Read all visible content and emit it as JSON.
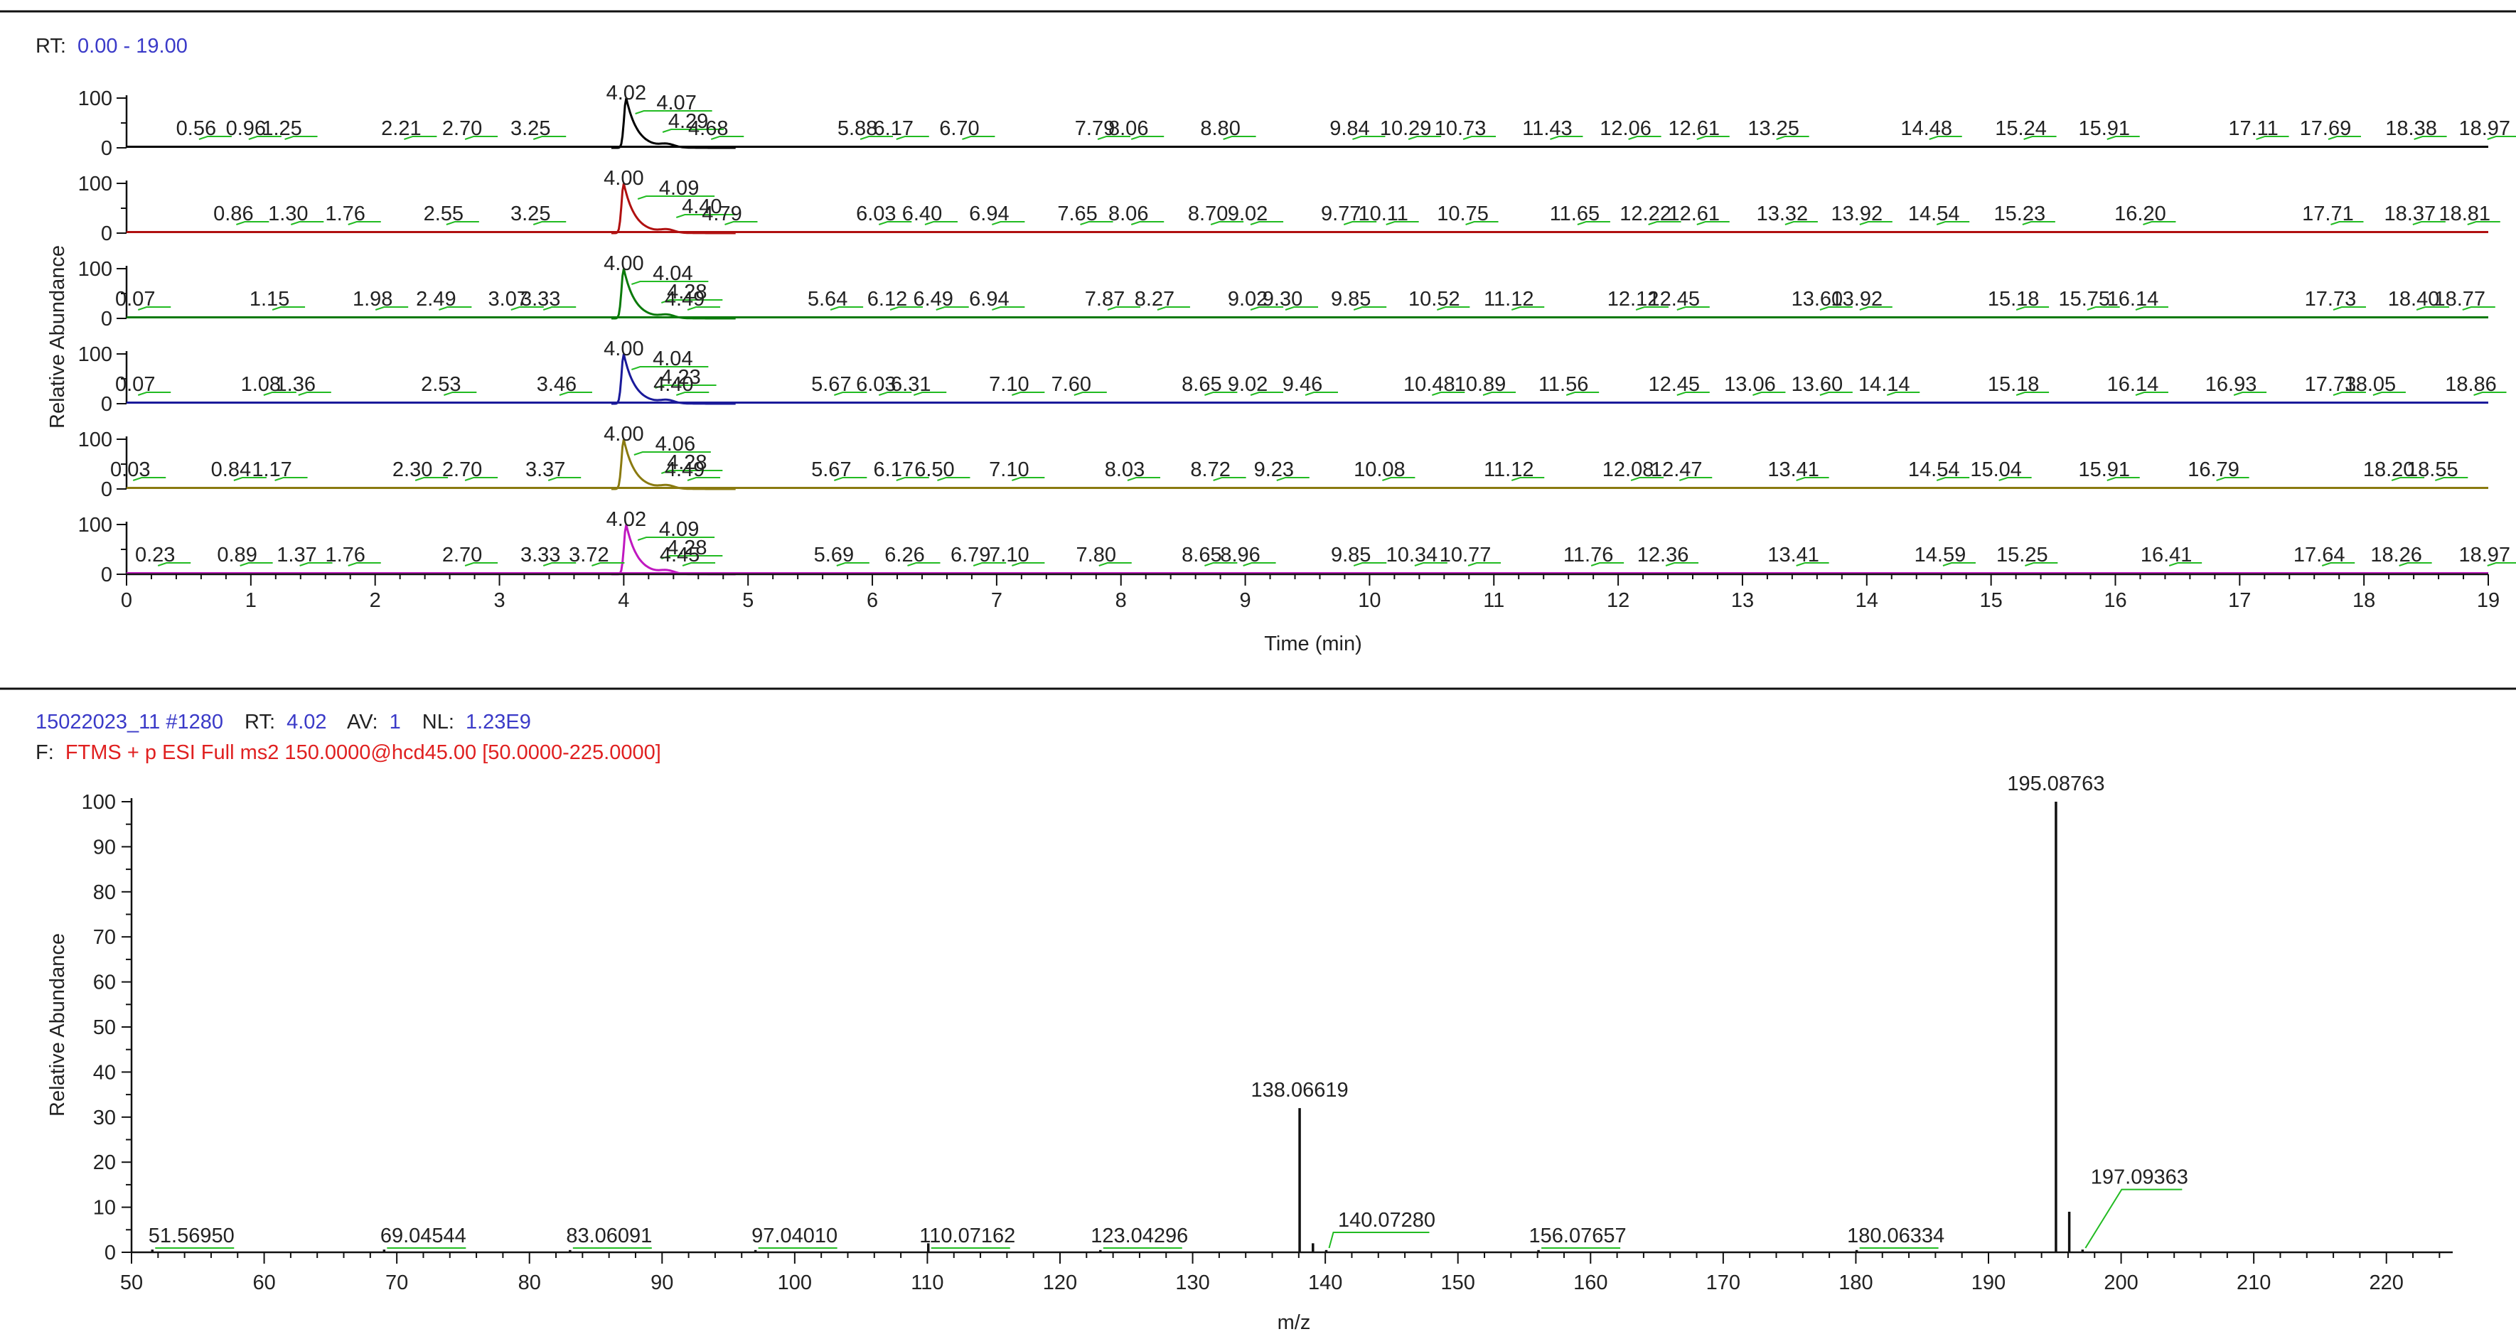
{
  "chromatogram_header": {
    "rt_label": "RT:",
    "rt_range": "0.00 - 19.00"
  },
  "spectrum_header": {
    "scan": "15022023_11 #1280",
    "rt_label": "RT:",
    "rt_value": "4.02",
    "av_label": "AV:",
    "av_value": "1",
    "nl_label": "NL:",
    "nl_value": "1.23E9",
    "filter_label": "F:",
    "filter_value": "FTMS + p ESI Full ms2 150.0000@hcd45.00 [50.0000-225.0000]"
  },
  "colors": {
    "header_blue": "#3a3ac8",
    "header_red": "#e02020",
    "label_leader": "#22bb22"
  },
  "chart_data": [
    {
      "type": "line",
      "chart": "stacked ion chromatograms",
      "xlabel": "Time (min)",
      "ylabel": "Relative Abundance",
      "xlim": [
        0,
        19
      ],
      "xticks": [
        "0",
        "1",
        "2",
        "3",
        "4",
        "5",
        "6",
        "7",
        "8",
        "9",
        "10",
        "11",
        "12",
        "13",
        "14",
        "15",
        "16",
        "17",
        "18",
        "19"
      ],
      "panel_yticks": [
        "100",
        "0"
      ],
      "panel_ylim": [
        0,
        100
      ],
      "series": [
        {
          "color": "#000000",
          "peak_rt": 4.02,
          "peak_labels": [
            {
              "rt": 4.02,
              "text": "4.02"
            },
            {
              "rt": 4.07,
              "text": "4.07"
            },
            {
              "rt": 4.29,
              "text": "4.29"
            },
            {
              "rt": 0.56,
              "text": "0.56"
            },
            {
              "rt": 0.96,
              "text": "0.96"
            },
            {
              "rt": 1.25,
              "text": "1.25"
            },
            {
              "rt": 2.21,
              "text": "2.21"
            },
            {
              "rt": 2.7,
              "text": "2.70"
            },
            {
              "rt": 3.25,
              "text": "3.25"
            },
            {
              "rt": 4.68,
              "text": "4.68"
            },
            {
              "rt": 5.88,
              "text": "5.88"
            },
            {
              "rt": 6.17,
              "text": "6.17"
            },
            {
              "rt": 6.7,
              "text": "6.70"
            },
            {
              "rt": 7.79,
              "text": "7.79"
            },
            {
              "rt": 8.06,
              "text": "8.06"
            },
            {
              "rt": 8.8,
              "text": "8.80"
            },
            {
              "rt": 9.84,
              "text": "9.84"
            },
            {
              "rt": 10.29,
              "text": "10.29"
            },
            {
              "rt": 10.73,
              "text": "10.73"
            },
            {
              "rt": 11.43,
              "text": "11.43"
            },
            {
              "rt": 12.06,
              "text": "12.06"
            },
            {
              "rt": 12.61,
              "text": "12.61"
            },
            {
              "rt": 13.25,
              "text": "13.25"
            },
            {
              "rt": 14.48,
              "text": "14.48"
            },
            {
              "rt": 15.24,
              "text": "15.24"
            },
            {
              "rt": 15.91,
              "text": "15.91"
            },
            {
              "rt": 17.11,
              "text": "17.11"
            },
            {
              "rt": 17.69,
              "text": "17.69"
            },
            {
              "rt": 18.38,
              "text": "18.38"
            },
            {
              "rt": 18.97,
              "text": "18.97"
            }
          ]
        },
        {
          "color": "#b01010",
          "peak_rt": 4.0,
          "peak_labels": [
            {
              "rt": 4.0,
              "text": "4.00"
            },
            {
              "rt": 4.09,
              "text": "4.09"
            },
            {
              "rt": 4.4,
              "text": "4.40"
            },
            {
              "rt": 0.86,
              "text": "0.86"
            },
            {
              "rt": 1.3,
              "text": "1.30"
            },
            {
              "rt": 1.76,
              "text": "1.76"
            },
            {
              "rt": 2.55,
              "text": "2.55"
            },
            {
              "rt": 3.25,
              "text": "3.25"
            },
            {
              "rt": 4.79,
              "text": "4.79"
            },
            {
              "rt": 6.03,
              "text": "6.03"
            },
            {
              "rt": 6.4,
              "text": "6.40"
            },
            {
              "rt": 6.94,
              "text": "6.94"
            },
            {
              "rt": 7.65,
              "text": "7.65"
            },
            {
              "rt": 8.06,
              "text": "8.06"
            },
            {
              "rt": 8.7,
              "text": "8.70"
            },
            {
              "rt": 9.02,
              "text": "9.02"
            },
            {
              "rt": 9.77,
              "text": "9.77"
            },
            {
              "rt": 10.11,
              "text": "10.11"
            },
            {
              "rt": 10.75,
              "text": "10.75"
            },
            {
              "rt": 11.65,
              "text": "11.65"
            },
            {
              "rt": 12.22,
              "text": "12.22"
            },
            {
              "rt": 12.61,
              "text": "12.61"
            },
            {
              "rt": 13.32,
              "text": "13.32"
            },
            {
              "rt": 13.92,
              "text": "13.92"
            },
            {
              "rt": 14.54,
              "text": "14.54"
            },
            {
              "rt": 15.23,
              "text": "15.23"
            },
            {
              "rt": 16.2,
              "text": "16.20"
            },
            {
              "rt": 17.71,
              "text": "17.71"
            },
            {
              "rt": 18.37,
              "text": "18.37"
            },
            {
              "rt": 18.81,
              "text": "18.81"
            }
          ]
        },
        {
          "color": "#0a7a0a",
          "peak_rt": 4.0,
          "peak_labels": [
            {
              "rt": 4.0,
              "text": "4.00"
            },
            {
              "rt": 4.04,
              "text": "4.04"
            },
            {
              "rt": 4.28,
              "text": "4.28"
            },
            {
              "rt": 0.07,
              "text": "0.07"
            },
            {
              "rt": 1.15,
              "text": "1.15"
            },
            {
              "rt": 1.98,
              "text": "1.98"
            },
            {
              "rt": 2.49,
              "text": "2.49"
            },
            {
              "rt": 3.07,
              "text": "3.07"
            },
            {
              "rt": 3.33,
              "text": "3.33"
            },
            {
              "rt": 4.49,
              "text": "4.49"
            },
            {
              "rt": 5.64,
              "text": "5.64"
            },
            {
              "rt": 6.12,
              "text": "6.12"
            },
            {
              "rt": 6.49,
              "text": "6.49"
            },
            {
              "rt": 6.94,
              "text": "6.94"
            },
            {
              "rt": 7.87,
              "text": "7.87"
            },
            {
              "rt": 8.27,
              "text": "8.27"
            },
            {
              "rt": 9.02,
              "text": "9.02"
            },
            {
              "rt": 9.3,
              "text": "9.30"
            },
            {
              "rt": 9.85,
              "text": "9.85"
            },
            {
              "rt": 10.52,
              "text": "10.52"
            },
            {
              "rt": 11.12,
              "text": "11.12"
            },
            {
              "rt": 12.12,
              "text": "12.12"
            },
            {
              "rt": 12.45,
              "text": "12.45"
            },
            {
              "rt": 13.6,
              "text": "13.60"
            },
            {
              "rt": 13.92,
              "text": "13.92"
            },
            {
              "rt": 15.18,
              "text": "15.18"
            },
            {
              "rt": 15.75,
              "text": "15.75"
            },
            {
              "rt": 16.14,
              "text": "16.14"
            },
            {
              "rt": 17.73,
              "text": "17.73"
            },
            {
              "rt": 18.4,
              "text": "18.40"
            },
            {
              "rt": 18.77,
              "text": "18.77"
            }
          ]
        },
        {
          "color": "#1a1a9a",
          "peak_rt": 4.0,
          "peak_labels": [
            {
              "rt": 4.0,
              "text": "4.00"
            },
            {
              "rt": 4.04,
              "text": "4.04"
            },
            {
              "rt": 4.23,
              "text": "4.23"
            },
            {
              "rt": 0.07,
              "text": "0.07"
            },
            {
              "rt": 1.08,
              "text": "1.08"
            },
            {
              "rt": 1.36,
              "text": "1.36"
            },
            {
              "rt": 2.53,
              "text": "2.53"
            },
            {
              "rt": 3.46,
              "text": "3.46"
            },
            {
              "rt": 4.4,
              "text": "4.40"
            },
            {
              "rt": 5.67,
              "text": "5.67"
            },
            {
              "rt": 6.03,
              "text": "6.03"
            },
            {
              "rt": 6.31,
              "text": "6.31"
            },
            {
              "rt": 7.1,
              "text": "7.10"
            },
            {
              "rt": 7.6,
              "text": "7.60"
            },
            {
              "rt": 8.65,
              "text": "8.65"
            },
            {
              "rt": 9.02,
              "text": "9.02"
            },
            {
              "rt": 9.46,
              "text": "9.46"
            },
            {
              "rt": 10.48,
              "text": "10.48"
            },
            {
              "rt": 10.89,
              "text": "10.89"
            },
            {
              "rt": 11.56,
              "text": "11.56"
            },
            {
              "rt": 12.45,
              "text": "12.45"
            },
            {
              "rt": 13.06,
              "text": "13.06"
            },
            {
              "rt": 13.6,
              "text": "13.60"
            },
            {
              "rt": 14.14,
              "text": "14.14"
            },
            {
              "rt": 15.18,
              "text": "15.18"
            },
            {
              "rt": 16.14,
              "text": "16.14"
            },
            {
              "rt": 16.93,
              "text": "16.93"
            },
            {
              "rt": 17.73,
              "text": "17.73"
            },
            {
              "rt": 18.05,
              "text": "18.05"
            },
            {
              "rt": 18.86,
              "text": "18.86"
            }
          ]
        },
        {
          "color": "#8a7a10",
          "peak_rt": 4.0,
          "peak_labels": [
            {
              "rt": 4.0,
              "text": "4.00"
            },
            {
              "rt": 4.06,
              "text": "4.06"
            },
            {
              "rt": 4.28,
              "text": "4.28"
            },
            {
              "rt": 0.03,
              "text": "0.03"
            },
            {
              "rt": 0.84,
              "text": "0.84"
            },
            {
              "rt": 1.17,
              "text": "1.17"
            },
            {
              "rt": 2.3,
              "text": "2.30"
            },
            {
              "rt": 2.7,
              "text": "2.70"
            },
            {
              "rt": 3.37,
              "text": "3.37"
            },
            {
              "rt": 4.49,
              "text": "4.49"
            },
            {
              "rt": 5.67,
              "text": "5.67"
            },
            {
              "rt": 6.17,
              "text": "6.17"
            },
            {
              "rt": 6.5,
              "text": "6.50"
            },
            {
              "rt": 7.1,
              "text": "7.10"
            },
            {
              "rt": 8.03,
              "text": "8.03"
            },
            {
              "rt": 8.72,
              "text": "8.72"
            },
            {
              "rt": 9.23,
              "text": "9.23"
            },
            {
              "rt": 10.08,
              "text": "10.08"
            },
            {
              "rt": 11.12,
              "text": "11.12"
            },
            {
              "rt": 12.08,
              "text": "12.08"
            },
            {
              "rt": 12.47,
              "text": "12.47"
            },
            {
              "rt": 13.41,
              "text": "13.41"
            },
            {
              "rt": 14.54,
              "text": "14.54"
            },
            {
              "rt": 15.04,
              "text": "15.04"
            },
            {
              "rt": 15.91,
              "text": "15.91"
            },
            {
              "rt": 16.79,
              "text": "16.79"
            },
            {
              "rt": 18.2,
              "text": "18.20"
            },
            {
              "rt": 18.55,
              "text": "18.55"
            }
          ]
        },
        {
          "color": "#c018c0",
          "peak_rt": 4.02,
          "peak_labels": [
            {
              "rt": 4.02,
              "text": "4.02"
            },
            {
              "rt": 4.09,
              "text": "4.09"
            },
            {
              "rt": 4.28,
              "text": "4.28"
            },
            {
              "rt": 0.23,
              "text": "0.23"
            },
            {
              "rt": 0.89,
              "text": "0.89"
            },
            {
              "rt": 1.37,
              "text": "1.37"
            },
            {
              "rt": 1.76,
              "text": "1.76"
            },
            {
              "rt": 2.7,
              "text": "2.70"
            },
            {
              "rt": 3.33,
              "text": "3.33"
            },
            {
              "rt": 3.72,
              "text": "3.72"
            },
            {
              "rt": 4.45,
              "text": "4.45"
            },
            {
              "rt": 5.69,
              "text": "5.69"
            },
            {
              "rt": 6.26,
              "text": "6.26"
            },
            {
              "rt": 6.79,
              "text": "6.79"
            },
            {
              "rt": 7.1,
              "text": "7.10"
            },
            {
              "rt": 7.8,
              "text": "7.80"
            },
            {
              "rt": 8.65,
              "text": "8.65"
            },
            {
              "rt": 8.96,
              "text": "8.96"
            },
            {
              "rt": 9.85,
              "text": "9.85"
            },
            {
              "rt": 10.34,
              "text": "10.34"
            },
            {
              "rt": 10.77,
              "text": "10.77"
            },
            {
              "rt": 11.76,
              "text": "11.76"
            },
            {
              "rt": 12.36,
              "text": "12.36"
            },
            {
              "rt": 13.41,
              "text": "13.41"
            },
            {
              "rt": 14.59,
              "text": "14.59"
            },
            {
              "rt": 15.25,
              "text": "15.25"
            },
            {
              "rt": 16.41,
              "text": "16.41"
            },
            {
              "rt": 17.64,
              "text": "17.64"
            },
            {
              "rt": 18.26,
              "text": "18.26"
            },
            {
              "rt": 18.97,
              "text": "18.97"
            }
          ]
        }
      ]
    },
    {
      "type": "bar",
      "chart": "mass spectrum",
      "xlabel": "m/z",
      "ylabel": "Relative Abundance",
      "xlim": [
        50,
        225
      ],
      "ylim": [
        0,
        100
      ],
      "xticks": [
        "50",
        "60",
        "70",
        "80",
        "90",
        "100",
        "110",
        "120",
        "130",
        "140",
        "150",
        "160",
        "170",
        "180",
        "190",
        "200",
        "210",
        "220"
      ],
      "yticks": [
        "0",
        "10",
        "20",
        "30",
        "40",
        "50",
        "60",
        "70",
        "80",
        "90",
        "100"
      ],
      "peaks": [
        {
          "mz": 51.5695,
          "intensity": 0.6,
          "label": "51.56950"
        },
        {
          "mz": 69.04544,
          "intensity": 0.6,
          "label": "69.04544"
        },
        {
          "mz": 83.06091,
          "intensity": 0.5,
          "label": "83.06091"
        },
        {
          "mz": 97.0401,
          "intensity": 0.5,
          "label": "97.04010"
        },
        {
          "mz": 110.07162,
          "intensity": 2.0,
          "label": "110.07162"
        },
        {
          "mz": 123.04296,
          "intensity": 0.5,
          "label": "123.04296"
        },
        {
          "mz": 138.06619,
          "intensity": 32.0,
          "label": "138.06619"
        },
        {
          "mz": 139.07,
          "intensity": 2.0,
          "label": ""
        },
        {
          "mz": 140.0728,
          "intensity": 0.5,
          "label": "140.07280"
        },
        {
          "mz": 156.07657,
          "intensity": 0.5,
          "label": "156.07657"
        },
        {
          "mz": 180.06334,
          "intensity": 0.5,
          "label": "180.06334"
        },
        {
          "mz": 195.08763,
          "intensity": 100.0,
          "label": "195.08763"
        },
        {
          "mz": 196.09,
          "intensity": 9.0,
          "label": ""
        },
        {
          "mz": 197.09363,
          "intensity": 0.6,
          "label": "197.09363"
        }
      ]
    }
  ]
}
